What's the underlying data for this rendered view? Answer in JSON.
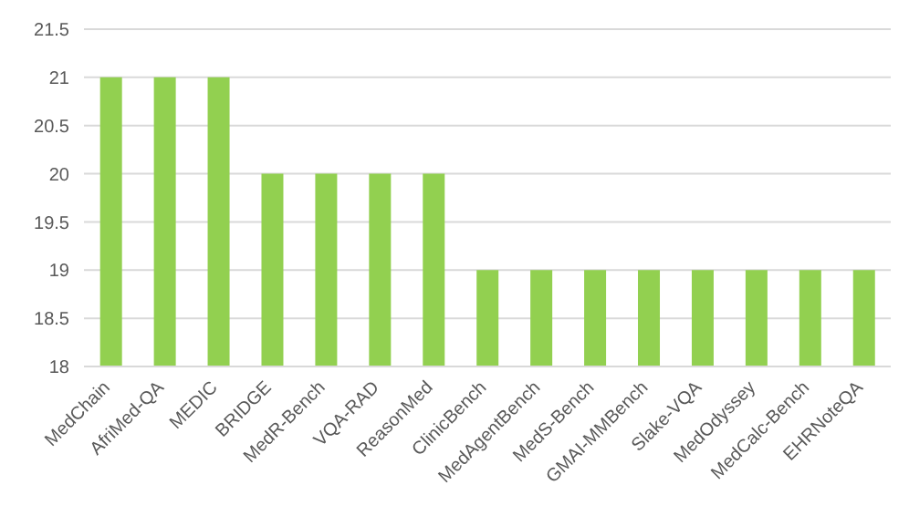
{
  "chart_data": {
    "type": "bar",
    "categories": [
      "MedChain",
      "AfriMed-QA",
      "MEDIC",
      "BRIDGE",
      "MedR-Bench",
      "VQA-RAD",
      "ReasonMed",
      "ClinicBench",
      "MedAgentBench",
      "MedS-Bench",
      "GMAI-MMBench",
      "Slake-VQA",
      "MedOdyssey",
      "MedCalc-Bench",
      "EHRNoteQA"
    ],
    "values": [
      21,
      21,
      21,
      20,
      20,
      20,
      20,
      19,
      19,
      19,
      19,
      19,
      19,
      19,
      19
    ],
    "color": "#92d050",
    "ylim": [
      18,
      21.5
    ],
    "yticks": [
      18,
      18.5,
      19,
      19.5,
      20,
      20.5,
      21,
      21.5
    ],
    "grid": "y"
  }
}
